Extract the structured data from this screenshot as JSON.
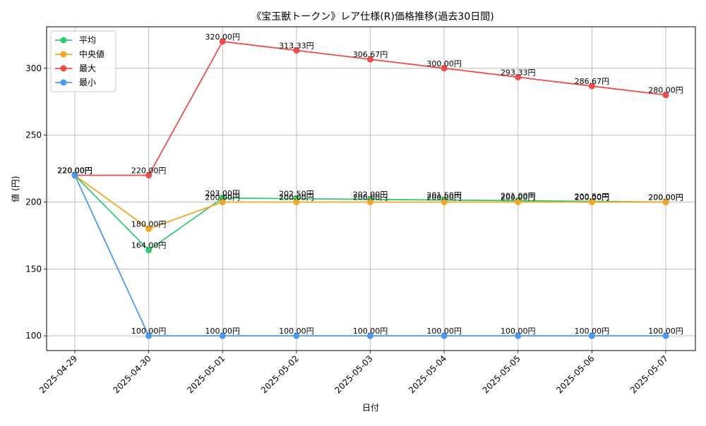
{
  "chart_data": {
    "type": "line",
    "title": "《宝玉獣トークン》レア仕様(R)価格推移(過去30日間)",
    "xlabel": "日付",
    "ylabel": "値 (円)",
    "ylim": [
      89,
      331
    ],
    "yticks": [
      100,
      150,
      200,
      250,
      300
    ],
    "grid": true,
    "legend_position": "top-left",
    "categories": [
      "2025-04-29",
      "2025-04-30",
      "2025-05-01",
      "2025-05-02",
      "2025-05-03",
      "2025-05-04",
      "2025-05-05",
      "2025-05-06",
      "2025-05-07"
    ],
    "series": [
      {
        "name": "平均",
        "color": "#2ecc71",
        "values": [
          220,
          164,
          203,
          202.5,
          202,
          201.5,
          201,
          200.5,
          200
        ],
        "labels": [
          "220.00円",
          "164.00円",
          "203.00円",
          "202.50円",
          "202.00円",
          "201.50円",
          "201.00円",
          "200.50円",
          "200.00円"
        ]
      },
      {
        "name": "中央値",
        "color": "#f5a623",
        "values": [
          220,
          180,
          200,
          200,
          200,
          200,
          200,
          200,
          200
        ],
        "labels": [
          "220.00円",
          "180.00円",
          "200.00円",
          "200.00円",
          "200.00円",
          "200.00円",
          "200.00円",
          "200.00円",
          "200.00円"
        ]
      },
      {
        "name": "最大",
        "color": "#ef4b4b",
        "values": [
          220,
          220,
          320,
          313.33,
          306.67,
          300,
          293.33,
          286.67,
          280
        ],
        "labels": [
          "220.00円",
          "220.00円",
          "320.00円",
          "313.33円",
          "306.67円",
          "300.00円",
          "293.33円",
          "286.67円",
          "280.00円"
        ]
      },
      {
        "name": "最小",
        "color": "#4a9af5",
        "values": [
          220,
          100,
          100,
          100,
          100,
          100,
          100,
          100,
          100
        ],
        "labels": [
          "220.00円",
          "100.00円",
          "100.00円",
          "100.00円",
          "100.00円",
          "100.00円",
          "100.00円",
          "100.00円",
          "100.00円"
        ]
      }
    ]
  }
}
